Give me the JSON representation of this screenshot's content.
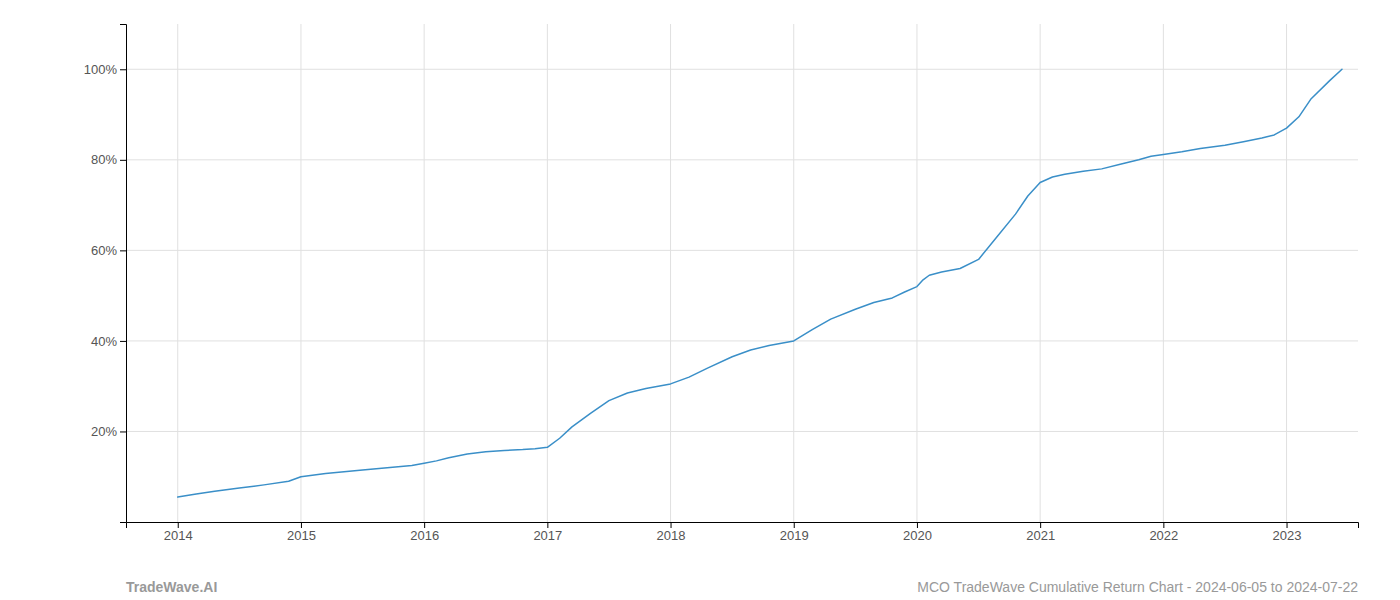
{
  "chart_data": {
    "type": "line",
    "x": [
      2014.0,
      2014.15,
      2014.3,
      2014.5,
      2014.7,
      2014.9,
      2015.0,
      2015.2,
      2015.5,
      2015.7,
      2015.9,
      2016.0,
      2016.1,
      2016.2,
      2016.35,
      2016.5,
      2016.65,
      2016.8,
      2016.9,
      2017.0,
      2017.1,
      2017.2,
      2017.35,
      2017.5,
      2017.65,
      2017.8,
      2017.9,
      2018.0,
      2018.15,
      2018.3,
      2018.5,
      2018.65,
      2018.8,
      2018.9,
      2019.0,
      2019.15,
      2019.3,
      2019.5,
      2019.65,
      2019.8,
      2019.9,
      2020.0,
      2020.05,
      2020.1,
      2020.2,
      2020.35,
      2020.5,
      2020.65,
      2020.8,
      2020.9,
      2021.0,
      2021.1,
      2021.2,
      2021.35,
      2021.5,
      2021.65,
      2021.8,
      2021.9,
      2022.0,
      2022.15,
      2022.3,
      2022.5,
      2022.65,
      2022.8,
      2022.9,
      2023.0,
      2023.1,
      2023.2,
      2023.35,
      2023.45
    ],
    "values": [
      0.055,
      0.062,
      0.068,
      0.075,
      0.082,
      0.09,
      0.1,
      0.107,
      0.115,
      0.12,
      0.125,
      0.13,
      0.135,
      0.142,
      0.15,
      0.155,
      0.158,
      0.16,
      0.162,
      0.165,
      0.185,
      0.21,
      0.24,
      0.268,
      0.285,
      0.295,
      0.3,
      0.305,
      0.32,
      0.34,
      0.365,
      0.38,
      0.39,
      0.395,
      0.4,
      0.425,
      0.448,
      0.47,
      0.485,
      0.495,
      0.508,
      0.52,
      0.535,
      0.545,
      0.552,
      0.56,
      0.58,
      0.63,
      0.68,
      0.72,
      0.75,
      0.762,
      0.768,
      0.775,
      0.78,
      0.79,
      0.8,
      0.808,
      0.812,
      0.818,
      0.825,
      0.832,
      0.84,
      0.848,
      0.855,
      0.87,
      0.895,
      0.935,
      0.975,
      1.0
    ],
    "color": "#3a8fc8",
    "xlim": [
      2013.58,
      2023.58
    ],
    "xticks": [
      2014,
      2015,
      2016,
      2017,
      2018,
      2019,
      2020,
      2021,
      2022,
      2023
    ],
    "ylim": [
      0.0,
      1.1
    ],
    "yticks": [
      {
        "value": 0.2,
        "label": "20%"
      },
      {
        "value": 0.4,
        "label": "40%"
      },
      {
        "value": 0.6,
        "label": "60%"
      },
      {
        "value": 0.8,
        "label": "80%"
      },
      {
        "value": 1.0,
        "label": "100%"
      }
    ],
    "grid": true,
    "annotations": [
      "TradeWave.AI",
      "MCO TradeWave Cumulative Return Chart - 2024-06-05 to 2024-07-22"
    ]
  }
}
